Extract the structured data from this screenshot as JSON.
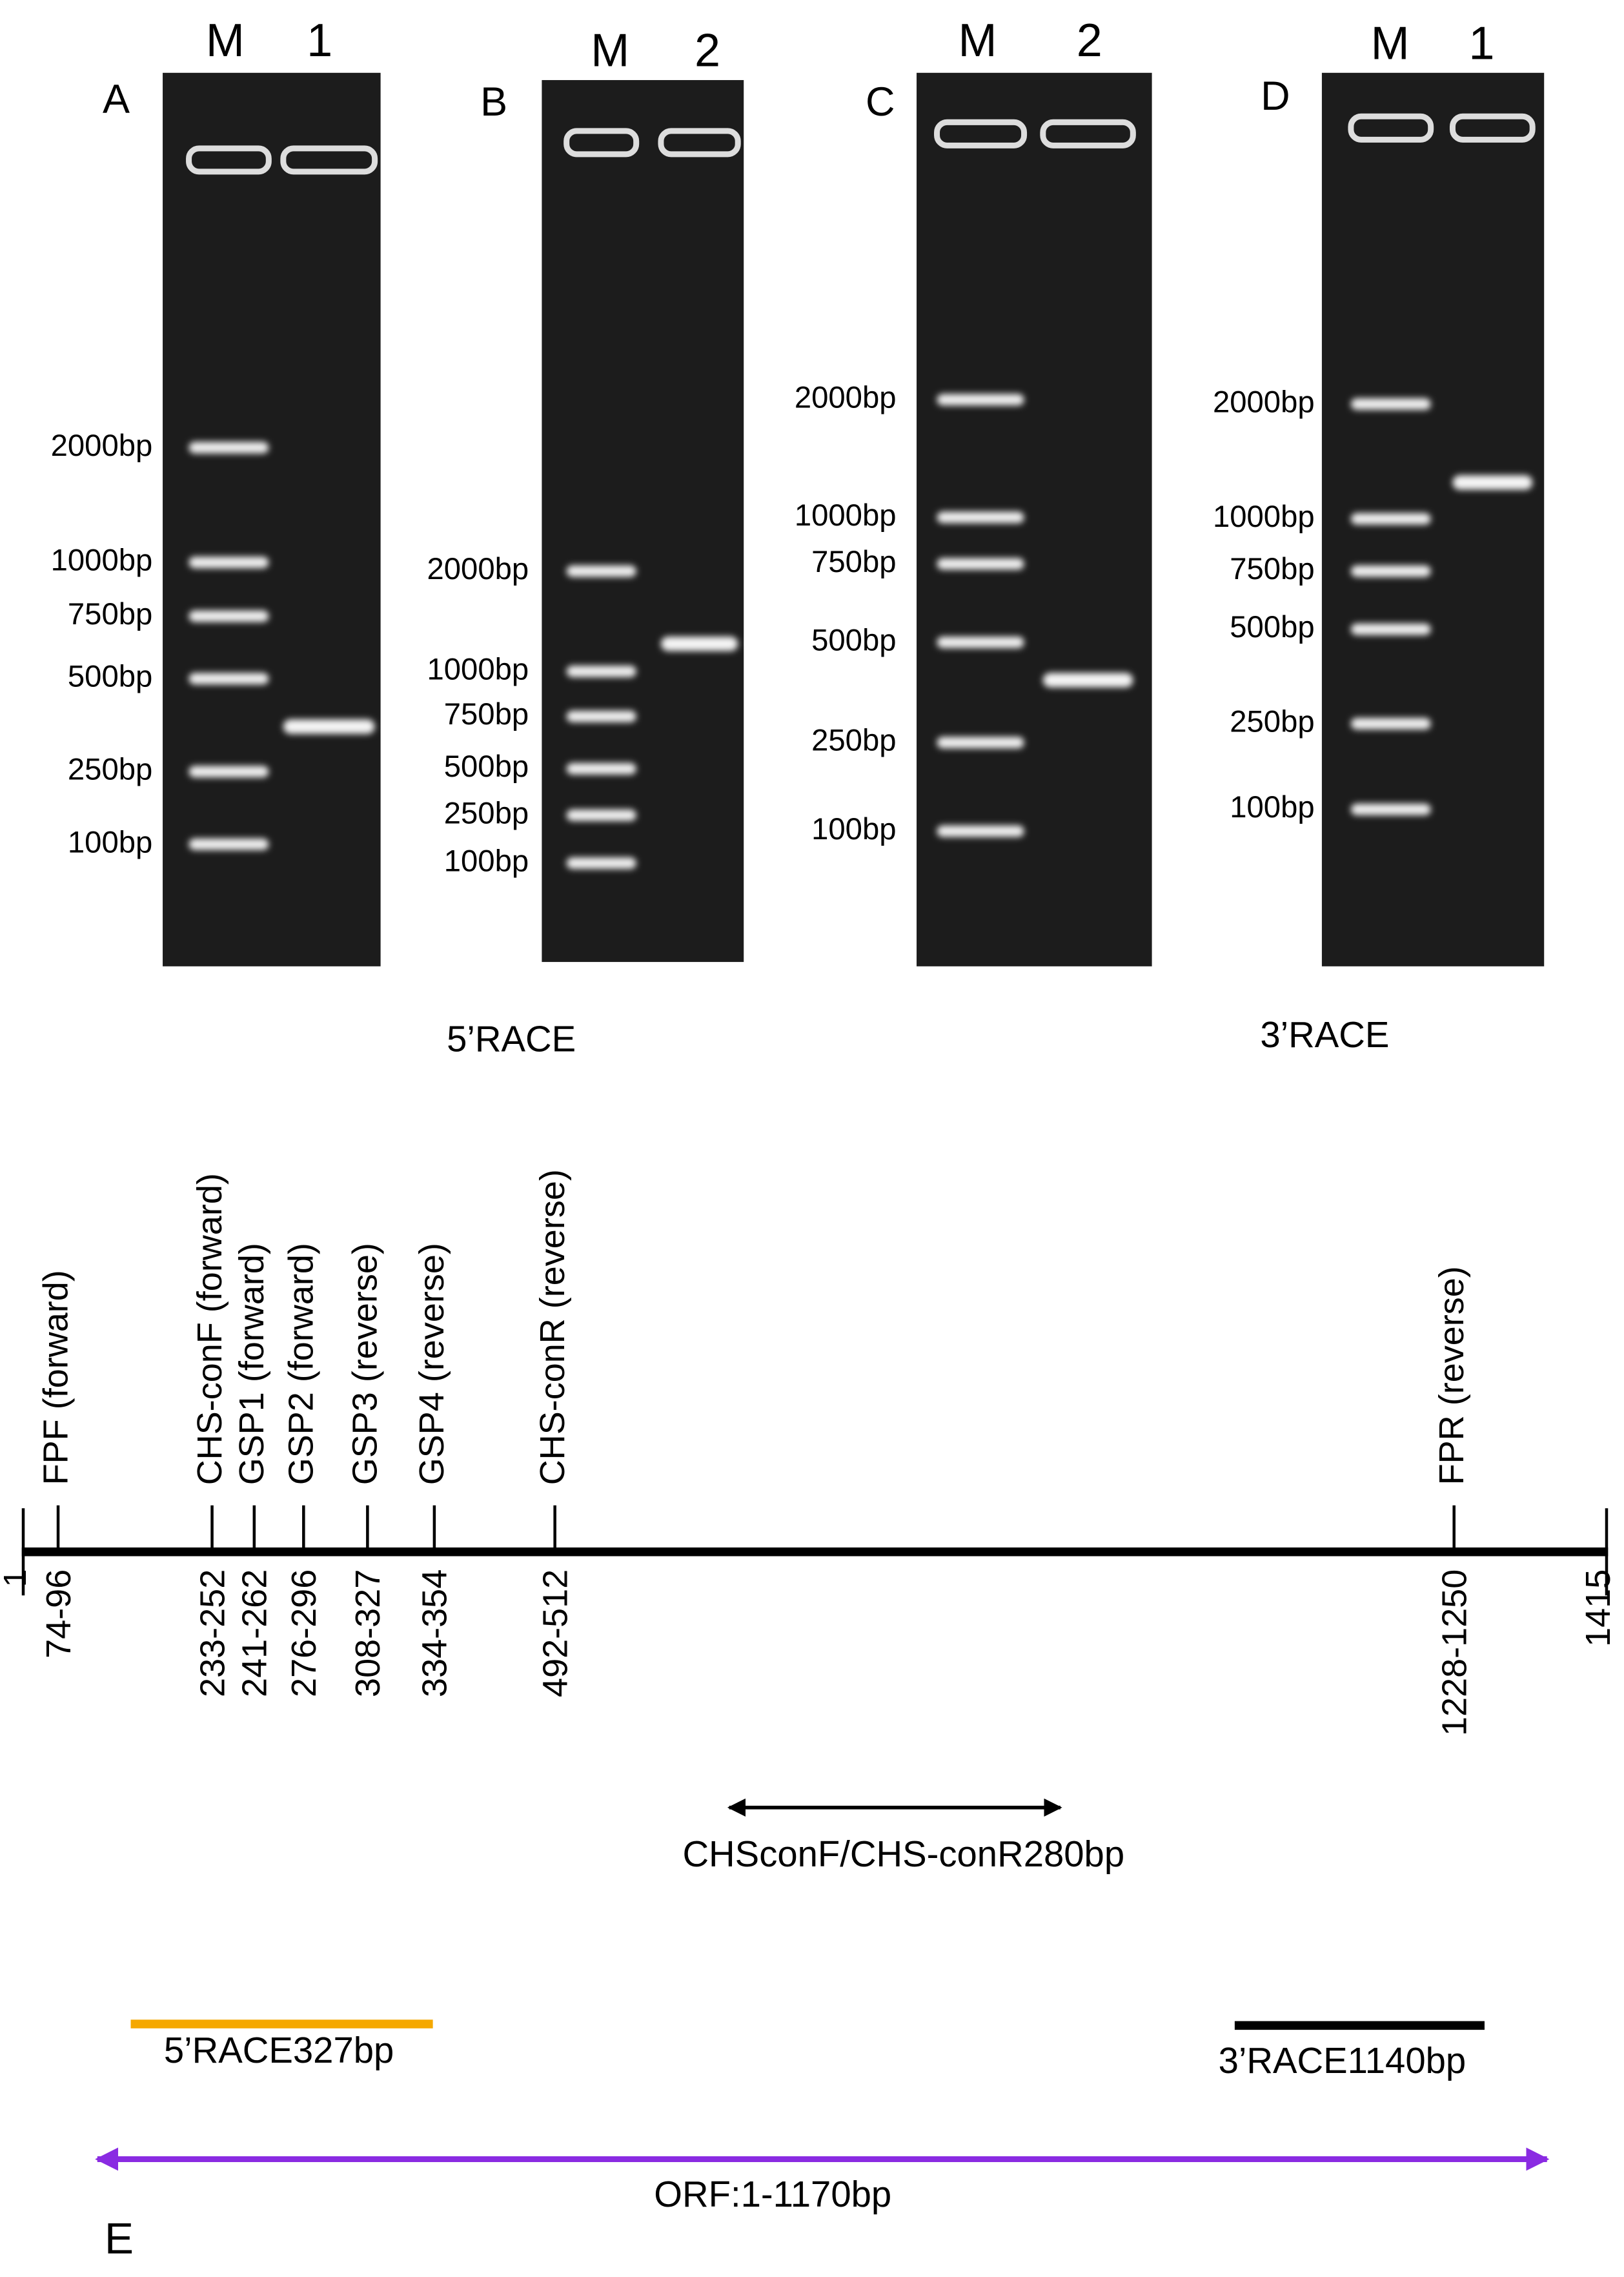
{
  "panels": [
    {
      "label": "A",
      "lanes": [
        "M",
        "1"
      ],
      "markers": [
        "2000bp",
        "1000bp",
        "750bp",
        "500bp",
        "250bp",
        "100bp"
      ]
    },
    {
      "label": "B",
      "lanes": [
        "M",
        "2"
      ],
      "markers": [
        "2000bp",
        "1000bp",
        "750bp",
        "500bp",
        "250bp",
        "100bp"
      ]
    },
    {
      "label": "C",
      "lanes": [
        "M",
        "2"
      ],
      "markers": [
        "2000bp",
        "1000bp",
        "750bp",
        "500bp",
        "250bp",
        "100bp"
      ]
    },
    {
      "label": "D",
      "lanes": [
        "M",
        "1"
      ],
      "markers": [
        "2000bp",
        "1000bp",
        "750bp",
        "500bp",
        "250bp",
        "100bp"
      ]
    }
  ],
  "group_labels": [
    "5’RACE",
    "3’RACE"
  ],
  "map": {
    "label": "E",
    "start": "1",
    "end": "1415",
    "primers": [
      {
        "name": "FPF (forward)",
        "position": "74-96"
      },
      {
        "name": "CHS-conF (forward)",
        "position": "233-252"
      },
      {
        "name": "GSP1 (forward)",
        "position": "241-262"
      },
      {
        "name": "GSP2 (forward)",
        "position": "276-296"
      },
      {
        "name": "GSP3 (reverse)",
        "position": "308-327"
      },
      {
        "name": "GSP4 (reverse)",
        "position": "334-354"
      },
      {
        "name": "CHS-conR (reverse)",
        "position": "492-512"
      },
      {
        "name": "FPR (reverse)",
        "position": "1228-1250"
      }
    ],
    "products": [
      "CHSconF/CHS-conR280bp",
      "5’RACE327bp",
      "3’RACE1140bp",
      "ORF:1-1170bp"
    ]
  }
}
